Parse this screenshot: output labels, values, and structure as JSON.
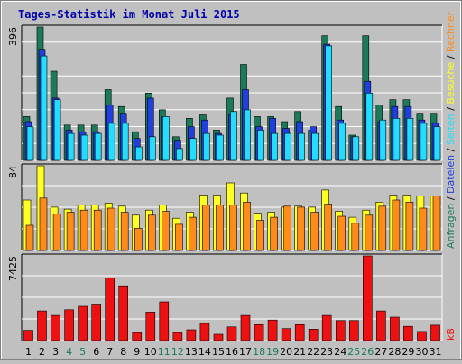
{
  "title": "Tages-Statistik im Monat Juli 2015",
  "colors": {
    "background": "#c0c0c0",
    "plot_bg": "#c0c0c0",
    "title": "#0000aa",
    "anfragen": "#1b7a5a",
    "dateien": "#1f3fe0",
    "seiten": "#22ddff",
    "besuche": "#ffff22",
    "rechner": "#ff8c1a",
    "kb": "#ee1111",
    "weekend": "#1b7a5a",
    "weekday": "#000000"
  },
  "chart_data": [
    {
      "type": "bar",
      "panel": "top",
      "ymax_label": "396",
      "ylim": [
        0,
        396
      ],
      "categories": [
        "1",
        "2",
        "3",
        "4",
        "5",
        "6",
        "7",
        "8",
        "9",
        "10",
        "11",
        "12",
        "13",
        "14",
        "15",
        "16",
        "17",
        "18",
        "19",
        "20",
        "21",
        "22",
        "23",
        "24",
        "25",
        "26",
        "27",
        "28",
        "29",
        "30",
        "31"
      ],
      "series": [
        {
          "name": "Anfragen",
          "color": "#1b7a5a",
          "values": [
            130,
            396,
            265,
            105,
            105,
            105,
            210,
            160,
            85,
            200,
            150,
            70,
            125,
            135,
            90,
            185,
            285,
            130,
            130,
            115,
            145,
            90,
            370,
            160,
            75,
            370,
            165,
            180,
            180,
            140,
            140
          ]
        },
        {
          "name": "Dateien",
          "color": "#1f3fe0",
          "values": [
            115,
            330,
            185,
            90,
            85,
            85,
            165,
            140,
            65,
            185,
            130,
            60,
            100,
            120,
            80,
            135,
            210,
            100,
            125,
            95,
            115,
            100,
            345,
            120,
            70,
            235,
            115,
            160,
            160,
            120,
            110
          ]
        },
        {
          "name": "Seiten",
          "color": "#22ddff",
          "values": [
            100,
            310,
            180,
            80,
            75,
            80,
            110,
            110,
            40,
            70,
            130,
            35,
            65,
            80,
            75,
            145,
            150,
            90,
            80,
            80,
            80,
            80,
            340,
            110,
            70,
            200,
            120,
            125,
            125,
            110,
            100
          ]
        }
      ]
    },
    {
      "type": "bar",
      "panel": "middle",
      "ymax_label": "84",
      "ylim": [
        0,
        84
      ],
      "categories": [
        "1",
        "2",
        "3",
        "4",
        "5",
        "6",
        "7",
        "8",
        "9",
        "10",
        "11",
        "12",
        "13",
        "14",
        "15",
        "16",
        "17",
        "18",
        "19",
        "20",
        "21",
        "22",
        "23",
        "24",
        "25",
        "26",
        "27",
        "28",
        "29",
        "30",
        "31"
      ],
      "series": [
        {
          "name": "Besuche",
          "color": "#ffff22",
          "values": [
            50,
            84,
            43,
            41,
            45,
            45,
            47,
            44,
            35,
            40,
            45,
            32,
            38,
            55,
            55,
            67,
            57,
            37,
            38,
            43,
            44,
            43,
            60,
            39,
            33,
            40,
            48,
            55,
            55,
            54,
            54
          ]
        },
        {
          "name": "Rechner",
          "color": "#ff8c1a",
          "values": [
            25,
            52,
            36,
            38,
            40,
            40,
            42,
            38,
            22,
            35,
            39,
            26,
            33,
            45,
            45,
            45,
            48,
            30,
            33,
            44,
            43,
            38,
            46,
            34,
            27,
            35,
            44,
            50,
            48,
            42,
            54
          ]
        }
      ]
    },
    {
      "type": "bar",
      "panel": "bottom",
      "ymax_label": "7425",
      "ylim": [
        0,
        7425
      ],
      "categories": [
        "1",
        "2",
        "3",
        "4",
        "5",
        "6",
        "7",
        "8",
        "9",
        "10",
        "11",
        "12",
        "13",
        "14",
        "15",
        "16",
        "17",
        "18",
        "19",
        "20",
        "21",
        "22",
        "23",
        "24",
        "25",
        "26",
        "27",
        "28",
        "29",
        "30",
        "31"
      ],
      "series": [
        {
          "name": "kB",
          "color": "#ee1111",
          "values": [
            900,
            2600,
            2200,
            2700,
            3000,
            3200,
            5500,
            4800,
            700,
            2500,
            3400,
            700,
            950,
            1500,
            550,
            1200,
            2200,
            1400,
            1800,
            1050,
            1400,
            1000,
            2200,
            1750,
            1750,
            7425,
            2600,
            2050,
            1250,
            800,
            1350
          ]
        }
      ]
    }
  ],
  "x_labels": [
    {
      "text": "1",
      "weekend": false
    },
    {
      "text": "2",
      "weekend": false
    },
    {
      "text": "3",
      "weekend": false
    },
    {
      "text": "4",
      "weekend": true
    },
    {
      "text": "5",
      "weekend": true
    },
    {
      "text": "6",
      "weekend": false
    },
    {
      "text": "7",
      "weekend": false
    },
    {
      "text": "8",
      "weekend": false
    },
    {
      "text": "9",
      "weekend": false
    },
    {
      "text": "10",
      "weekend": false
    },
    {
      "text": "11",
      "weekend": true
    },
    {
      "text": "12",
      "weekend": true
    },
    {
      "text": "13",
      "weekend": false
    },
    {
      "text": "14",
      "weekend": false
    },
    {
      "text": "15",
      "weekend": false
    },
    {
      "text": "16",
      "weekend": false
    },
    {
      "text": "17",
      "weekend": false
    },
    {
      "text": "18",
      "weekend": true
    },
    {
      "text": "19",
      "weekend": true
    },
    {
      "text": "20",
      "weekend": false
    },
    {
      "text": "21",
      "weekend": false
    },
    {
      "text": "22",
      "weekend": false
    },
    {
      "text": "23",
      "weekend": false
    },
    {
      "text": "24",
      "weekend": false
    },
    {
      "text": "25",
      "weekend": true
    },
    {
      "text": "26",
      "weekend": true
    },
    {
      "text": "27",
      "weekend": false
    },
    {
      "text": "28",
      "weekend": false
    },
    {
      "text": "29",
      "weekend": false
    },
    {
      "text": "30",
      "weekend": false
    },
    {
      "text": "31",
      "weekend": false
    }
  ],
  "legend_right": {
    "top": [
      {
        "text": "Anfragen",
        "color": "#1b7a5a"
      },
      {
        "text": "/",
        "color": "#000000"
      },
      {
        "text": "Dateien",
        "color": "#1f3fe0"
      },
      {
        "text": "/",
        "color": "#000000"
      },
      {
        "text": "Seiten",
        "color": "#22ddff"
      },
      {
        "text": "/",
        "color": "#000000"
      },
      {
        "text": "Besuche",
        "color": "#ffff22"
      },
      {
        "text": "/",
        "color": "#000000"
      },
      {
        "text": "Rechner",
        "color": "#ff8c1a"
      }
    ],
    "bottom": [
      {
        "text": "kB",
        "color": "#ee1111"
      }
    ]
  }
}
